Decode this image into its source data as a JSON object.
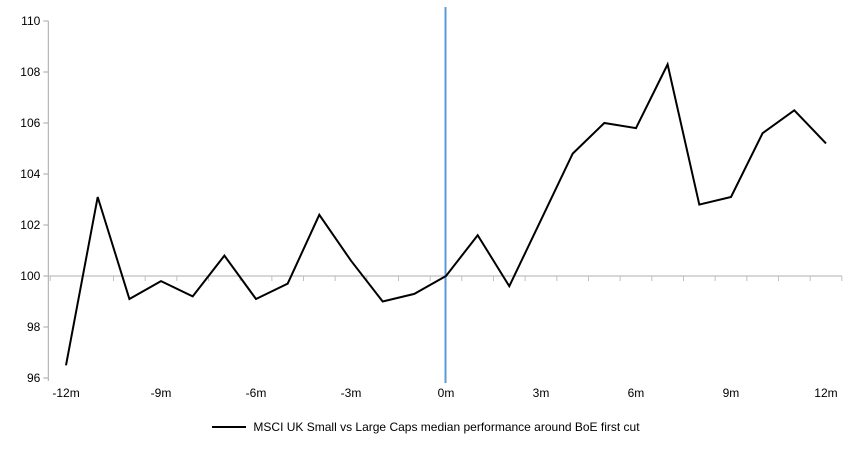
{
  "chart_data": {
    "type": "line",
    "title": "",
    "legend": "MSCI UK Small vs Large Caps median performance around BoE first cut",
    "xlabel": "",
    "ylabel": "",
    "x": [
      -12,
      -11,
      -10,
      -9,
      -8,
      -7,
      -6,
      -5,
      -4,
      -3,
      -2,
      -1,
      0,
      1,
      2,
      3,
      4,
      5,
      6,
      7,
      8,
      9,
      10,
      11,
      12
    ],
    "series": [
      {
        "name": "MSCI UK Small vs Large Caps median performance around BoE first cut",
        "values": [
          96.5,
          103.1,
          99.1,
          99.8,
          99.2,
          100.8,
          99.1,
          99.7,
          102.4,
          100.6,
          99.0,
          99.3,
          100.0,
          101.6,
          99.6,
          102.2,
          104.8,
          106.0,
          105.8,
          108.3,
          102.8,
          103.1,
          105.6,
          106.5,
          105.2
        ]
      }
    ],
    "y_ticks": [
      96,
      98,
      100,
      102,
      104,
      106,
      108,
      110
    ],
    "y_tick_labels": [
      "96",
      "98",
      "100",
      "102",
      "104",
      "106",
      "108",
      "110"
    ],
    "ylim": [
      96,
      110
    ],
    "x_tick_values": [
      -12,
      -9,
      -6,
      -3,
      0,
      3,
      6,
      9,
      12
    ],
    "x_tick_labels": [
      "-12m",
      "-9m",
      "-6m",
      "-3m",
      "0m",
      "3m",
      "6m",
      "9m",
      "12m"
    ],
    "xlim": [
      -12.5,
      12.5
    ],
    "baseline_value": 100,
    "event_line_x": 0,
    "grid": "baseline-only",
    "legend_position": "bottom",
    "colors": {
      "series_line": "#000000",
      "event_line": "#5B9BD5",
      "axis_line": "#A6A6A6",
      "baseline": "#BFBFBF",
      "text": "#000000"
    }
  }
}
